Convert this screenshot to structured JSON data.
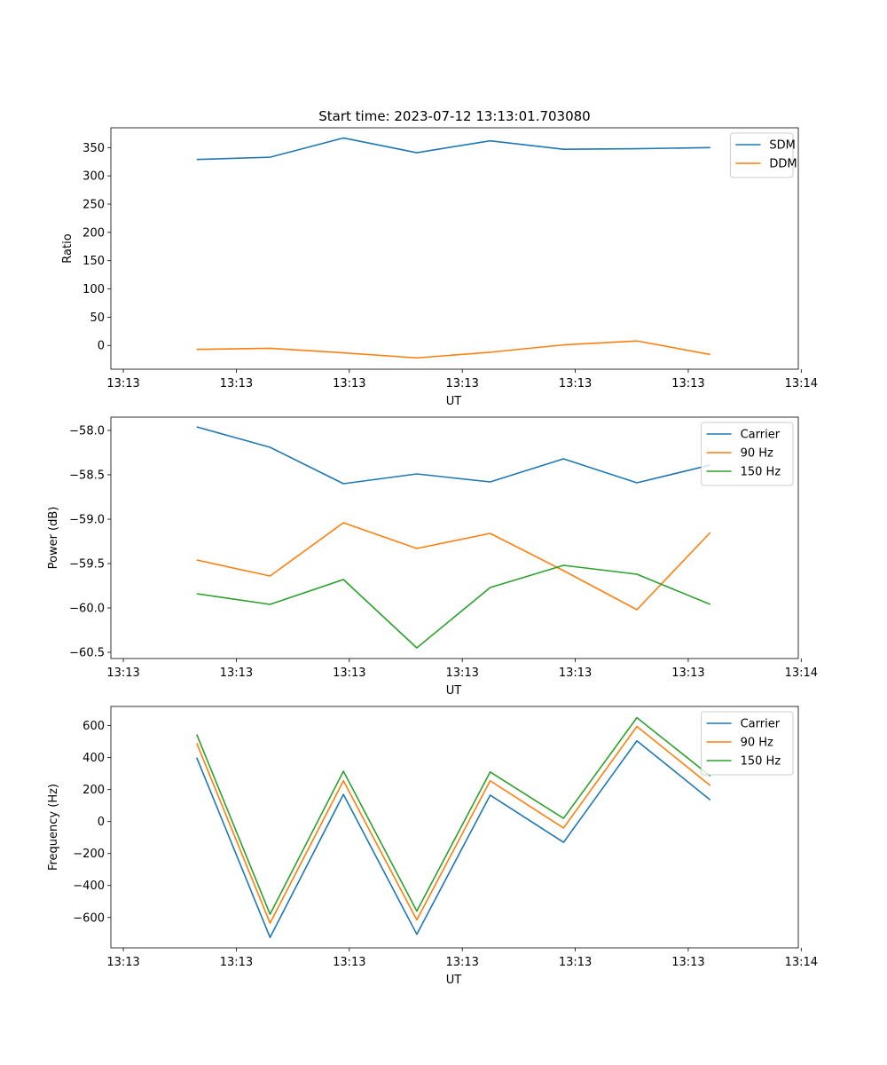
{
  "figure_title": "Start time: 2023-07-12 13:13:01.703080",
  "chart_data": [
    {
      "type": "line",
      "xlabel": "UT",
      "ylabel": "Ratio",
      "ylim": [
        -42,
        385
      ],
      "yticks": [
        0,
        50,
        100,
        150,
        200,
        250,
        300,
        350
      ],
      "ytick_labels": [
        "0",
        "50",
        "100",
        "150",
        "200",
        "250",
        "300",
        "350"
      ],
      "x": [
        1,
        2,
        3,
        4,
        5,
        6,
        7,
        8
      ],
      "xlim": [
        -0.17,
        9.2
      ],
      "xticks": [
        0,
        1.54,
        3.08,
        4.62,
        6.16,
        7.7,
        9.24
      ],
      "xtick_labels": [
        "13:13",
        "13:13",
        "13:13",
        "13:13",
        "13:13",
        "13:13",
        "13:14"
      ],
      "legend_position": "top-right",
      "grid": false,
      "series": [
        {
          "name": "SDM",
          "color": "#1f77b4",
          "values": [
            329,
            333,
            367,
            341,
            362,
            347,
            348,
            350
          ]
        },
        {
          "name": "DDM",
          "color": "#ff7f0e",
          "values": [
            -7,
            -5,
            -13,
            -22,
            -12,
            1,
            8,
            -16
          ]
        }
      ]
    },
    {
      "type": "line",
      "xlabel": "UT",
      "ylabel": "Power (dB)",
      "ylim": [
        -60.57,
        -57.85
      ],
      "yticks": [
        -60.5,
        -60.0,
        -59.5,
        -59.0,
        -58.5,
        -58.0
      ],
      "ytick_labels": [
        "−60.5",
        "−60.0",
        "−59.5",
        "−59.0",
        "−58.5",
        "−58.0"
      ],
      "x": [
        1,
        2,
        3,
        4,
        5,
        6,
        7,
        8
      ],
      "xlim": [
        -0.17,
        9.2
      ],
      "xticks": [
        0,
        1.54,
        3.08,
        4.62,
        6.16,
        7.7,
        9.24
      ],
      "xtick_labels": [
        "13:13",
        "13:13",
        "13:13",
        "13:13",
        "13:13",
        "13:13",
        "13:14"
      ],
      "legend_position": "top-right",
      "grid": false,
      "series": [
        {
          "name": "Carrier",
          "color": "#1f77b4",
          "values": [
            -57.96,
            -58.19,
            -58.6,
            -58.49,
            -58.58,
            -58.32,
            -58.59,
            -58.39
          ]
        },
        {
          "name": "90 Hz",
          "color": "#ff7f0e",
          "values": [
            -59.46,
            -59.64,
            -59.04,
            -59.33,
            -59.16,
            -59.58,
            -60.02,
            -59.15
          ]
        },
        {
          "name": "150 Hz",
          "color": "#2ca02c",
          "values": [
            -59.84,
            -59.96,
            -59.68,
            -60.45,
            -59.77,
            -59.52,
            -59.62,
            -59.96
          ]
        }
      ]
    },
    {
      "type": "line",
      "xlabel": "UT",
      "ylabel": "Frequency (Hz)",
      "ylim": [
        -790,
        720
      ],
      "yticks": [
        -600,
        -400,
        -200,
        0,
        200,
        400,
        600
      ],
      "ytick_labels": [
        "−600",
        "−400",
        "−200",
        "0",
        "200",
        "400",
        "600"
      ],
      "x": [
        1,
        2,
        3,
        4,
        5,
        6,
        7,
        8
      ],
      "xlim": [
        -0.17,
        9.2
      ],
      "xticks": [
        0,
        1.54,
        3.08,
        4.62,
        6.16,
        7.7,
        9.24
      ],
      "xtick_labels": [
        "13:13",
        "13:13",
        "13:13",
        "13:13",
        "13:13",
        "13:13",
        "13:14"
      ],
      "legend_position": "top-right",
      "grid": false,
      "series": [
        {
          "name": "Carrier",
          "color": "#1f77b4",
          "values": [
            400,
            -725,
            170,
            -705,
            165,
            -130,
            505,
            135
          ]
        },
        {
          "name": "90 Hz",
          "color": "#ff7f0e",
          "values": [
            490,
            -635,
            255,
            -615,
            255,
            -40,
            595,
            225
          ]
        },
        {
          "name": "150 Hz",
          "color": "#2ca02c",
          "values": [
            545,
            -580,
            315,
            -560,
            310,
            20,
            650,
            285
          ]
        }
      ]
    }
  ]
}
